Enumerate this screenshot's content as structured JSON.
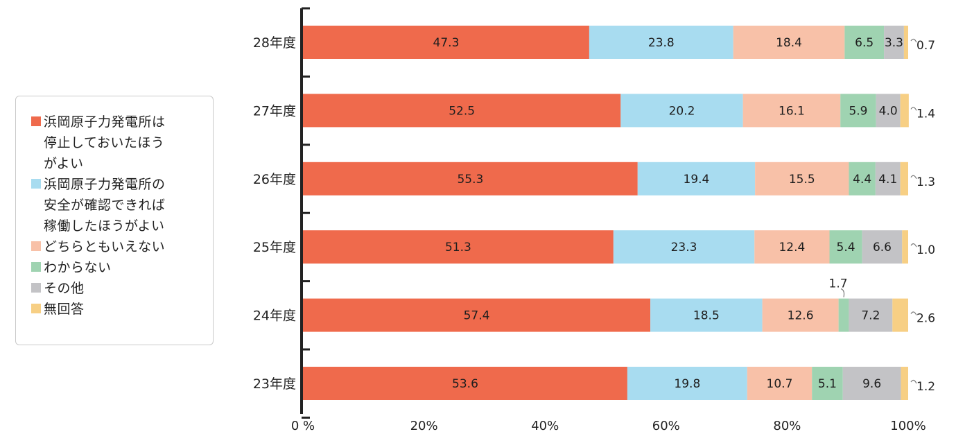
{
  "chart_data": {
    "type": "bar",
    "orientation": "horizontal",
    "stacked": true,
    "categories": [
      "28年度",
      "27年度",
      "26年度",
      "25年度",
      "24年度",
      "23年度"
    ],
    "series": [
      {
        "name": "浜岡原子力発電所は\n停止しておいたほう\nがよい",
        "color": "#ef6a4c",
        "values": [
          47.3,
          52.5,
          55.3,
          51.3,
          57.4,
          53.6
        ]
      },
      {
        "name": "浜岡原子力発電所の\n安全が確認できれば\n稼働したほうがよい",
        "color": "#a8dcf0",
        "values": [
          23.8,
          20.2,
          19.4,
          23.3,
          18.5,
          19.8
        ]
      },
      {
        "name": "どちらともいえない",
        "color": "#f8c1a8",
        "values": [
          18.4,
          16.1,
          15.5,
          12.4,
          12.6,
          10.7
        ]
      },
      {
        "name": "わからない",
        "color": "#9fd3b1",
        "values": [
          6.5,
          5.9,
          4.4,
          5.4,
          1.7,
          5.1
        ]
      },
      {
        "name": "その他",
        "color": "#c3c3c6",
        "values": [
          3.3,
          4.0,
          4.1,
          6.6,
          7.2,
          9.6
        ]
      },
      {
        "name": "無回答",
        "color": "#f7cf84",
        "values": [
          0.7,
          1.4,
          1.3,
          1.0,
          2.6,
          1.2
        ]
      }
    ],
    "data_labels": [
      [
        "47.3",
        "23.8",
        "18.4",
        "6.5",
        "3.3",
        "0.7"
      ],
      [
        "52.5",
        "20.2",
        "16.1",
        "5.9",
        "4.0",
        "1.4"
      ],
      [
        "55.3",
        "19.4",
        "15.5",
        "4.4",
        "4.1",
        "1.3"
      ],
      [
        "51.3",
        "23.3",
        "12.4",
        "5.4",
        "6.6",
        "1.0"
      ],
      [
        "57.4",
        "18.5",
        "12.6",
        "1.7",
        "7.2",
        "2.6"
      ],
      [
        "53.6",
        "19.8",
        "10.7",
        "5.1",
        "9.6",
        "1.2"
      ]
    ],
    "x_ticks": [
      "0 %",
      "20%",
      "40%",
      "60%",
      "80%",
      "100%"
    ],
    "xlim": [
      0,
      100
    ],
    "legend_position": "left",
    "grid": false
  }
}
